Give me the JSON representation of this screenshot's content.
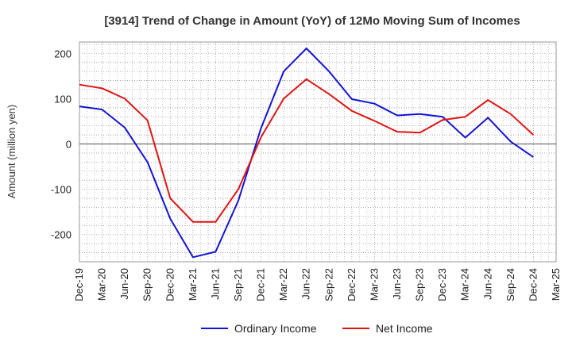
{
  "chart_data": {
    "type": "line",
    "title": "[3914]  Trend of Change in Amount (YoY) of 12Mo Moving Sum of Incomes",
    "xlabel": "",
    "ylabel": "Amount (million yen)",
    "ylim": [
      -260,
      225
    ],
    "yticks": [
      200,
      100,
      0,
      -100,
      -200
    ],
    "categories": [
      "Dec-19",
      "Mar-20",
      "Jun-20",
      "Sep-20",
      "Dec-20",
      "Mar-21",
      "Jun-21",
      "Sep-21",
      "Dec-21",
      "Mar-22",
      "Jun-22",
      "Sep-22",
      "Dec-22",
      "Mar-23",
      "Jun-23",
      "Sep-23",
      "Dec-23",
      "Mar-24",
      "Jun-24",
      "Sep-24",
      "Dec-24",
      "Mar-25"
    ],
    "grid": true,
    "legend_position": "bottom",
    "series": [
      {
        "name": "Ordinary Income",
        "color": "#1414d2",
        "values": [
          83,
          76,
          36,
          -40,
          -165,
          -250,
          -238,
          -125,
          35,
          160,
          211,
          160,
          99,
          89,
          63,
          66,
          60,
          14,
          58,
          5,
          -29,
          null
        ]
      },
      {
        "name": "Net Income",
        "color": "#e01414",
        "values": [
          131,
          123,
          100,
          52,
          -120,
          -172,
          -172,
          -100,
          15,
          100,
          143,
          110,
          73,
          51,
          27,
          25,
          53,
          60,
          97,
          66,
          20,
          null
        ]
      }
    ]
  }
}
